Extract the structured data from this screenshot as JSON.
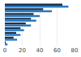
{
  "chart_data": {
    "type": "bar",
    "orientation": "horizontal",
    "categories": [
      null,
      null,
      null,
      null,
      null,
      null,
      null,
      null,
      null
    ],
    "series": [
      {
        "color": "#17304f",
        "values": [
          66,
          44,
          33,
          30,
          24,
          18,
          13,
          10,
          1
        ]
      },
      {
        "color": "#2878c0",
        "values": [
          73,
          54,
          40,
          36,
          30,
          22,
          18,
          14,
          3
        ]
      }
    ],
    "xlim": [
      0,
      80
    ],
    "xticks": [
      0,
      20,
      40,
      60,
      80
    ],
    "grid": true,
    "tick_labels": "x"
  }
}
